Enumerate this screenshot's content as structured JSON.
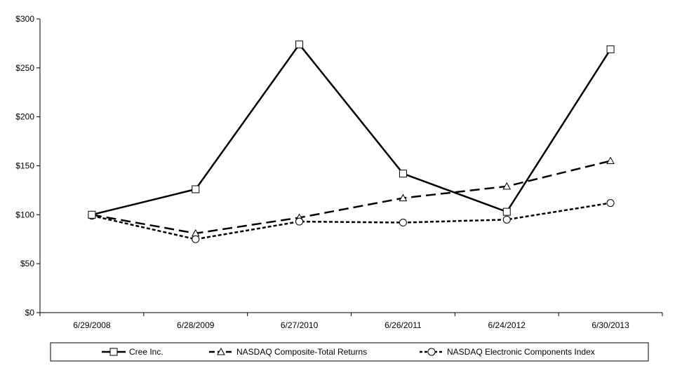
{
  "chart_data": {
    "type": "line",
    "title": "",
    "xlabel": "",
    "ylabel": "",
    "categories": [
      "6/29/2008",
      "6/28/2009",
      "6/27/2010",
      "6/26/2011",
      "6/24/2012",
      "6/30/2013"
    ],
    "ylim": [
      0,
      300
    ],
    "yticks": [
      0,
      50,
      100,
      150,
      200,
      250,
      300
    ],
    "ytick_labels": [
      "$0",
      "$50",
      "$100",
      "$150",
      "$200",
      "$250",
      "$300"
    ],
    "grid": false,
    "legend_position": "bottom",
    "series": [
      {
        "name": "Cree Inc.",
        "values": [
          100,
          126,
          274,
          142,
          103,
          269
        ],
        "marker": "square",
        "line_style": "solid",
        "color": "#000000"
      },
      {
        "name": "NASDAQ Composite-Total Returns",
        "values": [
          100,
          81,
          97,
          117,
          129,
          155
        ],
        "marker": "triangle",
        "line_style": "dashed",
        "color": "#000000"
      },
      {
        "name": "NASDAQ Electronic Components Index",
        "values": [
          99,
          75,
          93,
          92,
          95,
          112
        ],
        "marker": "circle",
        "line_style": "dotted",
        "color": "#000000"
      }
    ]
  }
}
